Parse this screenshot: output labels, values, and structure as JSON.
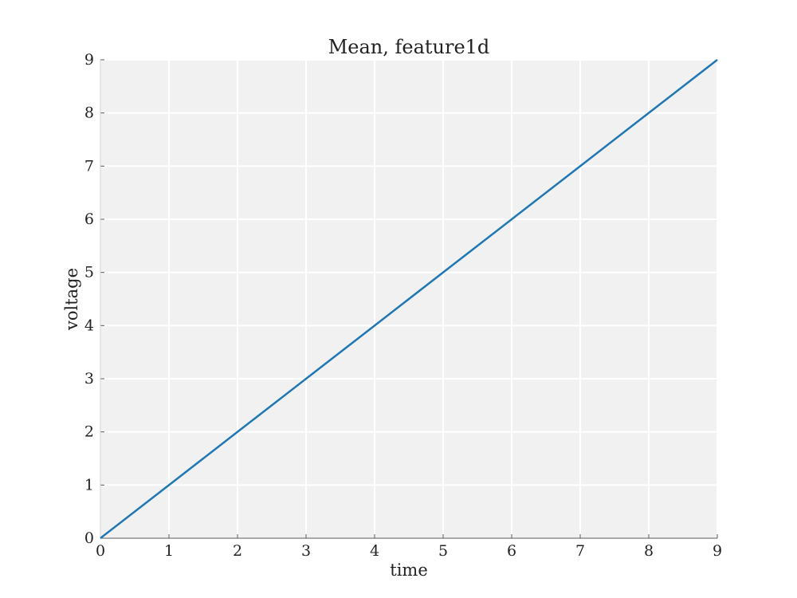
{
  "chart_data": {
    "type": "line",
    "title": "Mean, feature1d",
    "xlabel": "time",
    "ylabel": "voltage",
    "xlim": [
      0,
      9
    ],
    "ylim": [
      0,
      9
    ],
    "x_ticks": [
      "0",
      "1",
      "2",
      "3",
      "4",
      "5",
      "6",
      "7",
      "8",
      "9"
    ],
    "y_ticks": [
      "0",
      "1",
      "2",
      "3",
      "4",
      "5",
      "6",
      "7",
      "8",
      "9"
    ],
    "grid": true,
    "legend": "none",
    "series": [
      {
        "x": [
          0,
          1,
          2,
          3,
          4,
          5,
          6,
          7,
          8,
          9
        ],
        "values": [
          0,
          1,
          2,
          3,
          4,
          5,
          6,
          7,
          8,
          9
        ],
        "color": "#1f77b4"
      }
    ],
    "colors": {
      "background": "#f1f1f1",
      "grid": "#ffffff",
      "axis": "#555555"
    }
  }
}
